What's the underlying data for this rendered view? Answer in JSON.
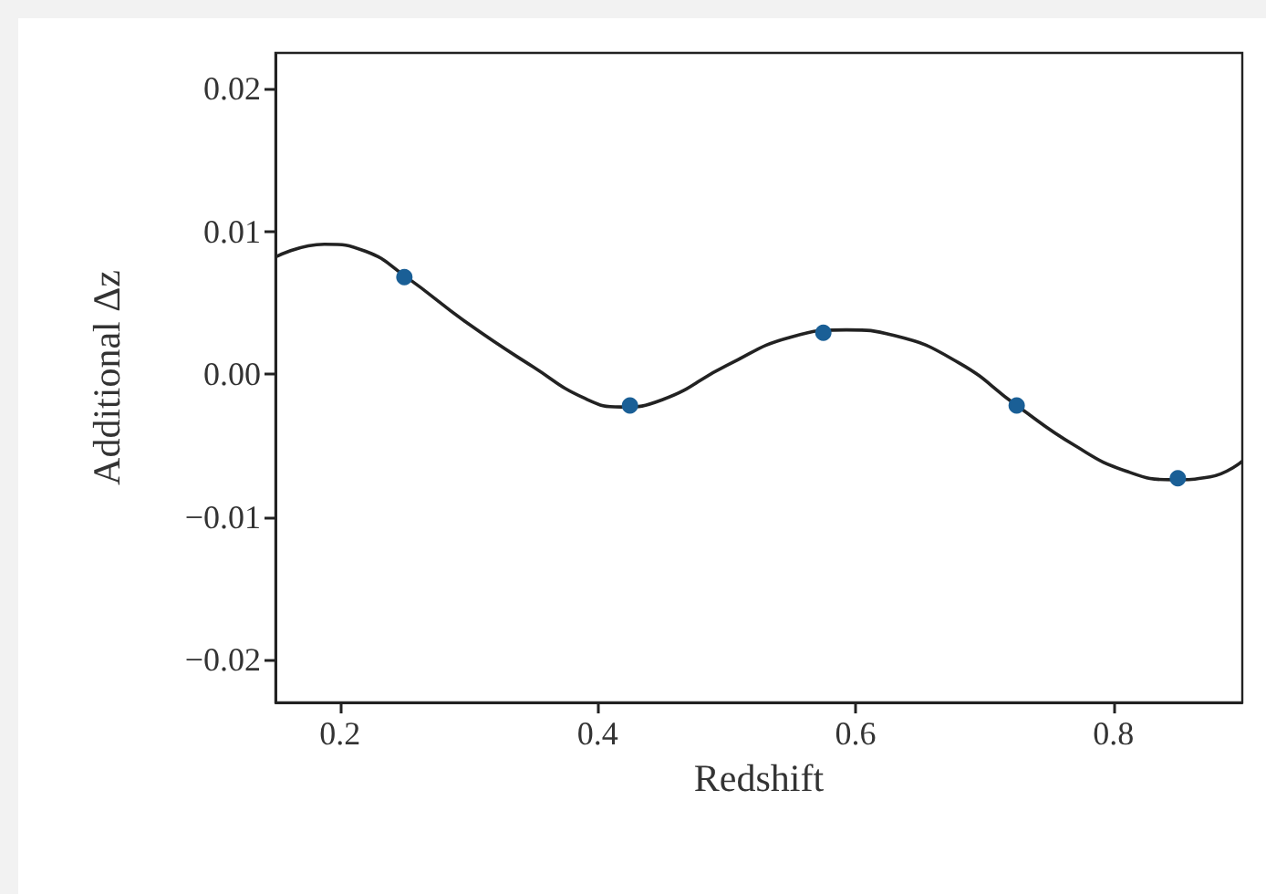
{
  "chart_data": {
    "type": "scatter",
    "xlabel": "Redshift",
    "ylabel": "Additional Δz",
    "xlim": [
      0.15,
      0.9
    ],
    "xticks": [
      0.2,
      0.4,
      0.6,
      0.8
    ],
    "ylim": [
      -0.023,
      0.0225
    ],
    "yticks": [
      {
        "value": 0.02,
        "label": "0.02"
      },
      {
        "value": 0.01,
        "label": "0.01"
      },
      {
        "value": 0,
        "label": "0.00"
      },
      {
        "value": -0.01,
        "label": "−0.01"
      },
      {
        "value": -0.02,
        "label": "−0.02"
      }
    ],
    "grid": false,
    "series": [
      {
        "type": "line",
        "color": "#222222",
        "marker": "none",
        "line_style": "solid",
        "x": [
          0.15,
          0.188,
          0.22,
          0.25,
          0.3,
          0.35,
          0.39,
          0.418,
          0.45,
          0.5,
          0.55,
          0.593,
          0.63,
          0.68,
          0.725,
          0.77,
          0.81,
          0.846,
          0.875,
          0.9
        ],
        "values": [
          0.0082,
          0.0091,
          0.0086,
          0.0069,
          0.0035,
          0.0005,
          -0.0017,
          -0.0023,
          -0.0018,
          0.0006,
          0.0026,
          0.0031,
          0.0027,
          0.0008,
          -0.0022,
          -0.005,
          -0.0068,
          -0.0074,
          -0.0072,
          -0.0061
        ]
      },
      {
        "type": "scatter",
        "color": "#1a5f96",
        "marker": "circle",
        "x": [
          0.25,
          0.425,
          0.575,
          0.725,
          0.85
        ],
        "values": [
          0.0068,
          -0.0022,
          0.0029,
          -0.0022,
          -0.0073
        ]
      }
    ]
  }
}
